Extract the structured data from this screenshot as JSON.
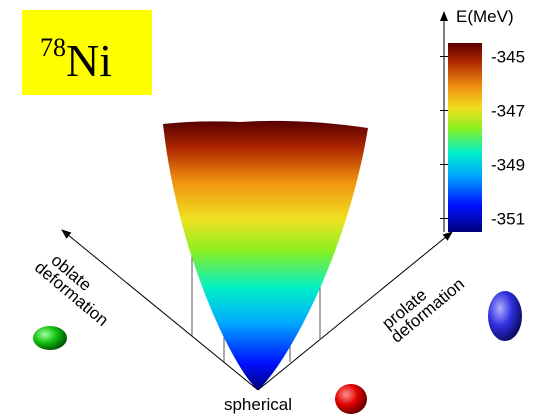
{
  "chart_data": {
    "type": "surface",
    "nucleus": {
      "mass_number": "78",
      "symbol": "Ni"
    },
    "colorbar": {
      "label": "E(MeV)",
      "lim": [
        -351.5,
        -344.5
      ],
      "ticks": [
        -345,
        -347,
        -349,
        -351
      ]
    },
    "axis_labels": {
      "oblate": [
        "oblate",
        "deformation"
      ],
      "prolate": [
        "prolate",
        "deformation"
      ],
      "origin": "spherical"
    }
  }
}
